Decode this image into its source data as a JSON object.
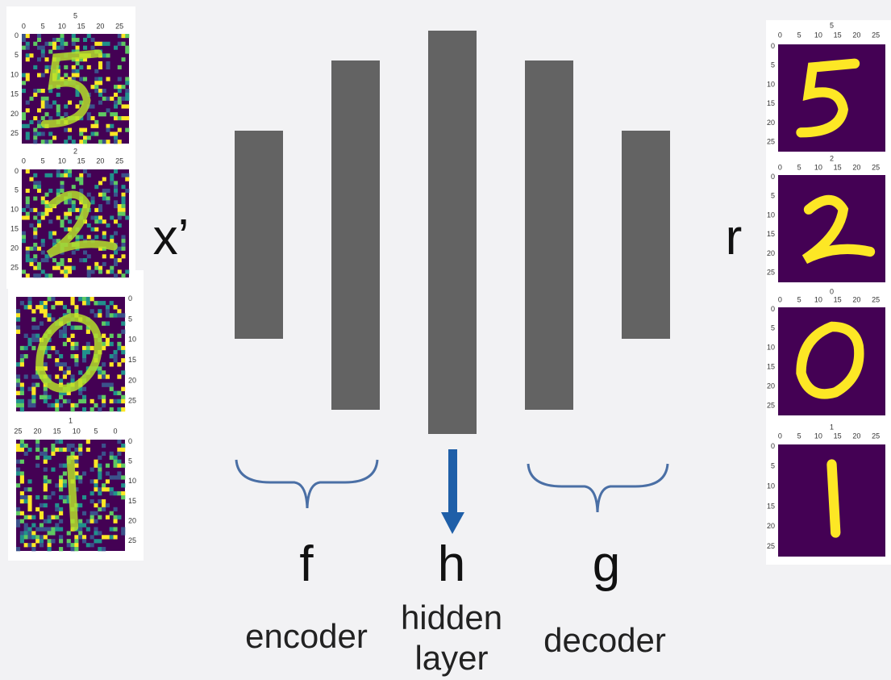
{
  "input_label": "x’",
  "output_label": "r",
  "sections": [
    {
      "symbol": "f",
      "label": "encoder"
    },
    {
      "symbol": "h",
      "label": "hidden layer"
    },
    {
      "symbol": "g",
      "label": "decoder"
    }
  ],
  "noisy_images": [
    {
      "title": "5",
      "xticks": [
        0,
        5,
        10,
        15,
        20,
        25
      ],
      "yticks": [
        0,
        5,
        10,
        15,
        20,
        25
      ]
    },
    {
      "title": "2",
      "xticks": [
        0,
        5,
        10,
        15,
        20,
        25
      ],
      "yticks": [
        0,
        5,
        10,
        15,
        20,
        25
      ]
    },
    {
      "yticks": [
        0,
        5,
        10,
        15,
        20,
        25
      ]
    },
    {
      "title": "1",
      "xticks": [
        25,
        20,
        15,
        10,
        5,
        0
      ],
      "yticks": [
        0,
        5,
        10,
        15,
        20,
        25
      ]
    }
  ],
  "clean_images": [
    {
      "title": "5",
      "xticks": [
        0,
        5,
        10,
        15,
        20,
        25
      ],
      "yticks": [
        0,
        5,
        10,
        15,
        20,
        25
      ]
    },
    {
      "title": "2",
      "xticks": [
        0,
        5,
        10,
        15,
        20,
        25
      ],
      "yticks": [
        0,
        5,
        10,
        15,
        20,
        25
      ]
    },
    {
      "title": "0",
      "xticks": [
        0,
        5,
        10,
        15,
        20,
        25
      ],
      "yticks": [
        0,
        5,
        10,
        15,
        20,
        25
      ]
    },
    {
      "title": "1",
      "xticks": [
        0,
        5,
        10,
        15,
        20,
        25
      ],
      "yticks": [
        0,
        5,
        10,
        15,
        20,
        25
      ]
    }
  ]
}
